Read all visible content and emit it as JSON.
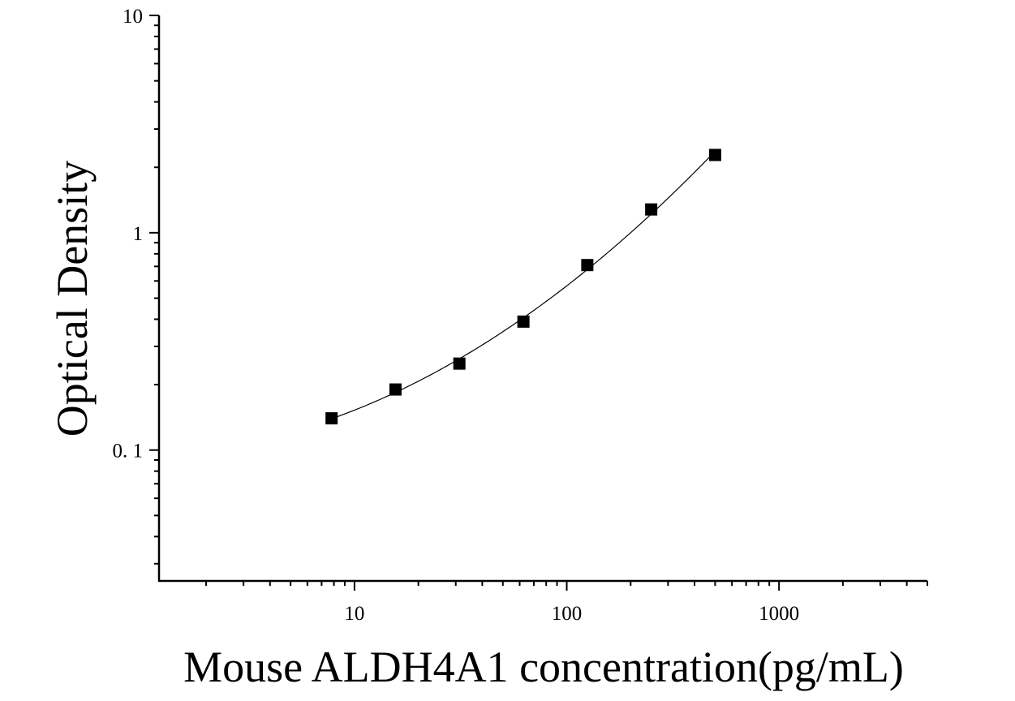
{
  "chart_data": {
    "type": "scatter",
    "title": "",
    "xlabel": "Mouse ALDH4A1 concentration(pg/mL)",
    "ylabel": "Optical Density",
    "x_scale": "log",
    "y_scale": "log",
    "xlim": [
      1.2,
      5000
    ],
    "ylim": [
      0.025,
      10
    ],
    "x_ticks": [
      {
        "value": 10,
        "label": "10"
      },
      {
        "value": 100,
        "label": "100"
      },
      {
        "value": 1000,
        "label": "1000"
      }
    ],
    "y_ticks": [
      {
        "value": 0.1,
        "label": "0. 1"
      },
      {
        "value": 1,
        "label": "1"
      },
      {
        "value": 10,
        "label": "10"
      }
    ],
    "grid": false,
    "series": [
      {
        "marker": "square",
        "color": "#000000",
        "x": [
          7.8,
          15.6,
          31.2,
          62.5,
          125,
          250,
          500
        ],
        "y": [
          0.14,
          0.19,
          0.25,
          0.39,
          0.71,
          1.28,
          2.28
        ]
      }
    ],
    "fit_curve": {
      "color": "#000000",
      "type": "smooth"
    }
  }
}
